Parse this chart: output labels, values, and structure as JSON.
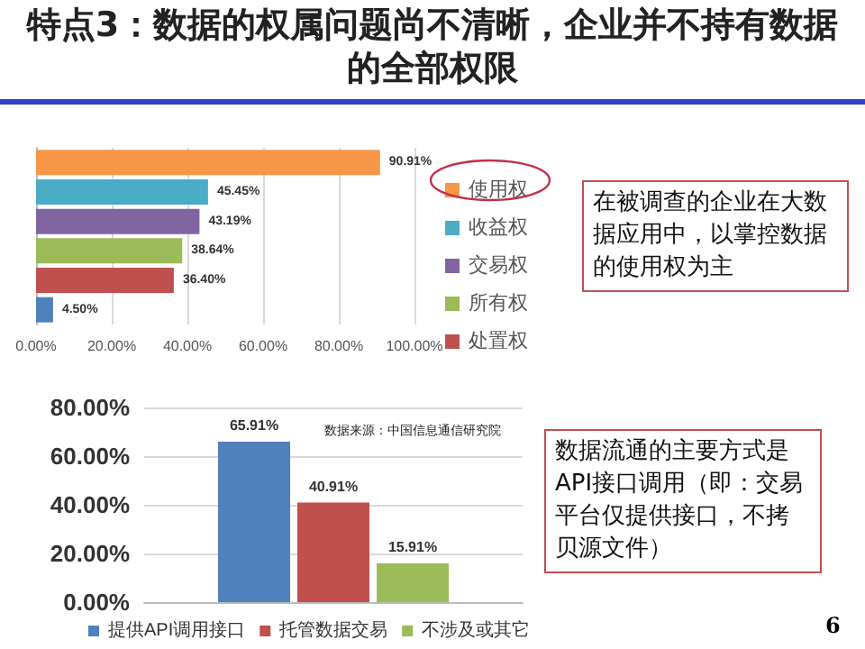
{
  "chart_data": [
    {
      "type": "bar",
      "title": "特点3：数据的权属问题尚不清晰，企业并不持有数据的全部权限",
      "orientation": "horizontal",
      "categories": [
        null,
        null,
        null,
        null,
        null,
        null
      ],
      "series": [
        {
          "name": "使用权",
          "color": "#f79646",
          "values": [
            90.91,
            null,
            null,
            null,
            null,
            null
          ],
          "value_labels": [
            "90.91%",
            null,
            null,
            null,
            null,
            null
          ]
        },
        {
          "name": "收益权",
          "color": "#4bacc6",
          "values": [
            null,
            45.45,
            null,
            null,
            null,
            null
          ],
          "value_labels": [
            null,
            "45.45%",
            null,
            null,
            null,
            null
          ]
        },
        {
          "name": "交易权",
          "color": "#8064a2",
          "values": [
            null,
            null,
            43.19,
            null,
            null,
            null
          ],
          "value_labels": [
            null,
            null,
            "43.19%",
            null,
            null,
            null
          ]
        },
        {
          "name": "所有权",
          "color": "#9bbb59",
          "values": [
            null,
            null,
            null,
            38.64,
            null,
            null
          ],
          "value_labels": [
            null,
            null,
            null,
            "38.64%",
            null,
            null
          ]
        },
        {
          "name": "处置权",
          "color": "#c0504d",
          "values": [
            null,
            null,
            null,
            null,
            36.4,
            null
          ],
          "value_labels": [
            null,
            null,
            null,
            null,
            "36.40%",
            null
          ]
        },
        {
          "color": "#4f81bd",
          "values": [
            null,
            null,
            null,
            null,
            null,
            4.5
          ],
          "value_labels": [
            null,
            null,
            null,
            null,
            null,
            "4.50%"
          ]
        }
      ],
      "xlim": [
        0,
        100
      ],
      "xticks": [
        {
          "value": 0,
          "label": "0.00%"
        },
        {
          "value": 20,
          "label": "20.00%"
        },
        {
          "value": 40,
          "label": "40.00%"
        },
        {
          "value": 60,
          "label": "60.00%"
        },
        {
          "value": 80,
          "label": "80.00%"
        },
        {
          "value": 100,
          "label": "100.00%"
        }
      ],
      "grid": "x",
      "legend": "right",
      "annotations": [
        "在被调查的企业在大数据应用中，以掌控数据的使用权为主"
      ]
    },
    {
      "type": "bar",
      "categories": [
        null
      ],
      "series": [
        {
          "name": "提供API调用接口",
          "color": "#4f81bd",
          "values": [
            65.91
          ],
          "value_labels": [
            "65.91%"
          ]
        },
        {
          "name": "托管数据交易",
          "color": "#c0504d",
          "values": [
            40.91
          ],
          "value_labels": [
            "40.91%"
          ]
        },
        {
          "name": "不涉及或其它",
          "color": "#9bbb59",
          "values": [
            15.91
          ],
          "value_labels": [
            "15.91%"
          ]
        }
      ],
      "ylim": [
        0,
        80
      ],
      "yticks": [
        {
          "value": 0,
          "label": "0.00%"
        },
        {
          "value": 20,
          "label": "20.00%"
        },
        {
          "value": 40,
          "label": "40.00%"
        },
        {
          "value": 60,
          "label": "60.00%"
        },
        {
          "value": 80,
          "label": "80.00%"
        }
      ],
      "grid": "y",
      "legend": "bottom",
      "annotations": [
        "数据来源：中国信息通信研究院",
        "数据流通的主要方式是API接口调用（即：交易平台仅提供接口，不拷贝源文件）",
        "6"
      ]
    }
  ]
}
